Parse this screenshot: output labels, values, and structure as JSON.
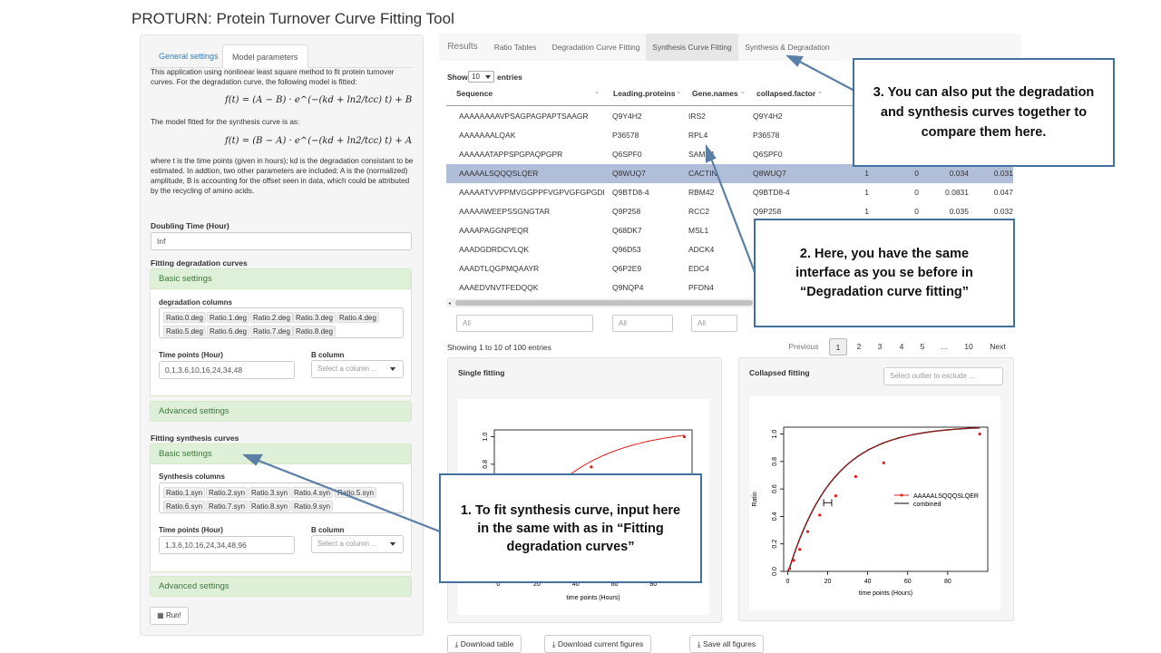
{
  "app_title": "PROTURN: Protein Turnover Curve Fitting Tool",
  "sidebar": {
    "tabs": [
      "General settings",
      "Model parameters"
    ],
    "intro_1": "This application using nonlinear least square method to fit protein turnover curves. For the degradation curve, the following model is fitted:",
    "formula_deg": "f(t) = (A − B) · e^(−(kd + ln2/tcc) t) + B",
    "intro_2": "The model fitted for the synthesis curve is as:",
    "formula_syn": "f(t) = (B − A) · e^(−(kd + ln2/tcc) t) + A",
    "intro_3": "where t is the time points (given in hours); kd is the degradation consistant to be estimated. In addtion, two other parameters are included: A is the (normalized) amplitude, B is accounting for the offset seen in data, which could be attributed by the recycling of amino acids.",
    "doubling_label": "Doubling Time (Hour)",
    "doubling_value": "Inf",
    "deg_title": "Fitting degradation curves",
    "basic_settings": "Basic settings",
    "advanced_settings": "Advanced settings",
    "deg_columns_label": "degradation columns",
    "deg_columns": [
      "Ratio.0.deg",
      "Ratio.1.deg",
      "Ratio.2.deg",
      "Ratio.3.deg",
      "Ratio.4.deg",
      "Ratio.5.deg",
      "Ratio.6.deg",
      "Ratio.7.deg",
      "Ratio.8.deg"
    ],
    "time_label": "Time points (Hour)",
    "b_column_label": "B column",
    "b_column_placeholder": "Select a column ...",
    "deg_time_value": "0,1,3,6,10,16,24,34,48",
    "syn_title": "Fitting synthesis curves",
    "syn_columns_label": "Synthesis columns",
    "syn_columns": [
      "Ratio.1.syn",
      "Ratio.2.syn",
      "Ratio.3.syn",
      "Ratio.4.syn",
      "Ratio.5.syn",
      "Ratio.6.syn",
      "Ratio.7.syn",
      "Ratio.8.syn",
      "Ratio.9.syn"
    ],
    "syn_time_value": "1,3,6,10,16,24,34,48,96",
    "run_label": "Run!"
  },
  "main": {
    "results_label": "Results",
    "tabs": [
      "Ratio Tables",
      "Degradation Curve Fitting",
      "Synthesis Curve Fitting",
      "Synthesis & Degradation"
    ],
    "show_label": "Show",
    "entries_value": "10",
    "entries_label": "entries",
    "columns": [
      "Sequence",
      "Leading.proteins",
      "Gene.names",
      "collapsed.factor"
    ],
    "rows": [
      {
        "seq": "AAAAAAAAVPSAGPAGPAPTSAAGR",
        "prot": "Q9Y4H2",
        "gene": "IRS2",
        "cf": "Q9Y4H2",
        "n1": "",
        "n2": "",
        "n3": "",
        "n4": ""
      },
      {
        "seq": "AAAAAAALQAK",
        "prot": "P36578",
        "gene": "RPL4",
        "cf": "P36578",
        "n1": "",
        "n2": "",
        "n3": "",
        "n4": ""
      },
      {
        "seq": "AAAAAATAPPSPGPAQPGPR",
        "prot": "Q6SPF0",
        "gene": "SAMD1",
        "cf": "Q6SPF0",
        "n1": "",
        "n2": "",
        "n3": "",
        "n4": ""
      },
      {
        "seq": "AAAAALSQQQSLQER",
        "prot": "Q8WUQ7",
        "gene": "CACTIN",
        "cf": "Q8WUQ7",
        "n1": "1",
        "n2": "0",
        "n3": "0.034",
        "n4": "0.031"
      },
      {
        "seq": "AAAAATVVPPMVGGPPFVGPVGFGPGDR",
        "prot": "Q9BTD8-4",
        "gene": "RBM42",
        "cf": "Q9BTD8-4",
        "n1": "1",
        "n2": "0",
        "n3": "0.0831",
        "n4": "0.047"
      },
      {
        "seq": "AAAAAWEEPSSGNGTAR",
        "prot": "Q9P258",
        "gene": "RCC2",
        "cf": "Q9P258",
        "n1": "1",
        "n2": "0",
        "n3": "0.035",
        "n4": "0.032"
      },
      {
        "seq": "AAAAPAGGNPEQR",
        "prot": "Q68DK7",
        "gene": "MSL1",
        "cf": "",
        "n1": "",
        "n2": "",
        "n3": "",
        "n4": ""
      },
      {
        "seq": "AAADGDRDCVLQK",
        "prot": "Q96D53",
        "gene": "ADCK4",
        "cf": "",
        "n1": "",
        "n2": "",
        "n3": "",
        "n4": ""
      },
      {
        "seq": "AAADTLQGPMQAAYR",
        "prot": "Q6P2E9",
        "gene": "EDC4",
        "cf": "",
        "n1": "",
        "n2": "",
        "n3": "",
        "n4": ""
      },
      {
        "seq": "AAAEDVNVTFEDQQK",
        "prot": "Q9NQP4",
        "gene": "PFDN4",
        "cf": "",
        "n1": "",
        "n2": "",
        "n3": "",
        "n4": ""
      }
    ],
    "filter_placeholder": "All",
    "showing": "Showing 1 to 10 of 100 entries",
    "pagination": [
      "Previous",
      "1",
      "2",
      "3",
      "4",
      "5",
      "…",
      "10",
      "Next"
    ],
    "single_title": "Single fitting",
    "collapsed_title": "Collapsed fitting",
    "outlier_placeholder": "Select outlier to exclude ...",
    "download_table": "Download table",
    "download_current": "Download current figures",
    "save_all": "Save all figures"
  },
  "chart_data": [
    {
      "type": "line",
      "name_shown": "Single fitting",
      "xlabel": "time points (Hours)",
      "ylabel": "",
      "x_ticks": [
        0,
        20,
        40,
        60,
        80
      ],
      "y_ticks_visible": [
        0.8,
        1.0
      ],
      "points": [
        [
          48,
          0.78
        ],
        [
          96,
          1.0
        ]
      ],
      "curve_color": "#e41a1c"
    },
    {
      "type": "line",
      "xlabel": "time points (Hours)",
      "ylabel": "Ratio",
      "x_ticks": [
        0,
        20,
        40,
        60,
        80
      ],
      "y_ticks": [
        0.0,
        0.2,
        0.4,
        0.6,
        0.8,
        1.0
      ],
      "xlim": [
        -2,
        100
      ],
      "ylim": [
        0,
        1.05
      ],
      "legend": [
        "AAAAALSQQQSLQER",
        "combined"
      ],
      "legend_position": "right",
      "points": [
        [
          1,
          0.02
        ],
        [
          3,
          0.08
        ],
        [
          6,
          0.16
        ],
        [
          10,
          0.29
        ],
        [
          16,
          0.41
        ],
        [
          24,
          0.55
        ],
        [
          34,
          0.69
        ],
        [
          48,
          0.79
        ],
        [
          96,
          1.0
        ]
      ],
      "error_bar": {
        "x": 20,
        "y": 0.5,
        "xmin": 18,
        "xmax": 22
      },
      "series_colors": [
        "#e41a1c",
        "#000000"
      ]
    }
  ],
  "callouts": {
    "c1": "1. To fit synthesis curve, input here in the same with as in “Fitting degradation curves”",
    "c2": "2. Here, you have the same interface as you se before in “Degradation curve fitting”",
    "c3": "3. You can also put the degradation and synthesis curves together to compare them here."
  },
  "colors": {
    "callout_border": "#41719c",
    "accent_green": "#dff0d8",
    "row_highlight": "#b0bed9"
  }
}
